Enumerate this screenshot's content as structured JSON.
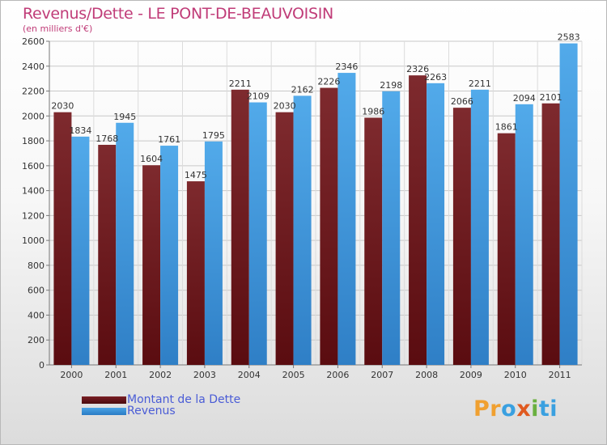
{
  "title": "Revenus/Dette - LE PONT-DE-BEAUVOISIN",
  "subtitle": "(en milliers d'€)",
  "colors": {
    "dette": "#7a1f24",
    "dette_dark": "#4a0a0d",
    "revenus": "#4aa3e6",
    "revenus_dark": "#2a7cc4",
    "title": "#c03c78",
    "legend_text": "#4a5cd6"
  },
  "legend": {
    "dette_label": "Montant de la Dette",
    "revenus_label": "Revenus"
  },
  "logo": {
    "text": "Proxiti",
    "letter_colors": [
      "#f0a030",
      "#f0a030",
      "#3aa0e0",
      "#e05a20",
      "#6ab040",
      "#3aa0e0",
      "#3aa0e0"
    ]
  },
  "chart_data": {
    "type": "bar",
    "categories": [
      "2000",
      "2001",
      "2002",
      "2003",
      "2004",
      "2005",
      "2006",
      "2007",
      "2008",
      "2009",
      "2010",
      "2011"
    ],
    "series": [
      {
        "name": "Montant de la Dette",
        "values": [
          2030,
          1768,
          1604,
          1475,
          2211,
          2030,
          2226,
          1986,
          2326,
          2066,
          1861,
          2101
        ],
        "labels": [
          "2030",
          "1768",
          "1604",
          "1475",
          "2211",
          "2030",
          "2226",
          "1986",
          "2326",
          "2066",
          "1861",
          "2101"
        ]
      },
      {
        "name": "Revenus",
        "values": [
          1834,
          1945,
          1761,
          1795,
          2109,
          2162,
          2346,
          2198,
          2263,
          2211,
          2094,
          2583
        ],
        "labels": [
          "1834",
          "1945",
          "1761",
          "1795",
          "2109",
          "2162",
          "2346",
          "2198",
          "2263",
          "2211",
          "2094",
          "2583"
        ]
      }
    ],
    "y_ticks": [
      "0",
      "200",
      "400",
      "600",
      "800",
      "1000",
      "1200",
      "1400",
      "1600",
      "1800",
      "2000",
      "2200",
      "2400",
      "2600"
    ],
    "ylim": [
      0,
      2600
    ],
    "grid": true,
    "legend_position": "bottom-left"
  }
}
